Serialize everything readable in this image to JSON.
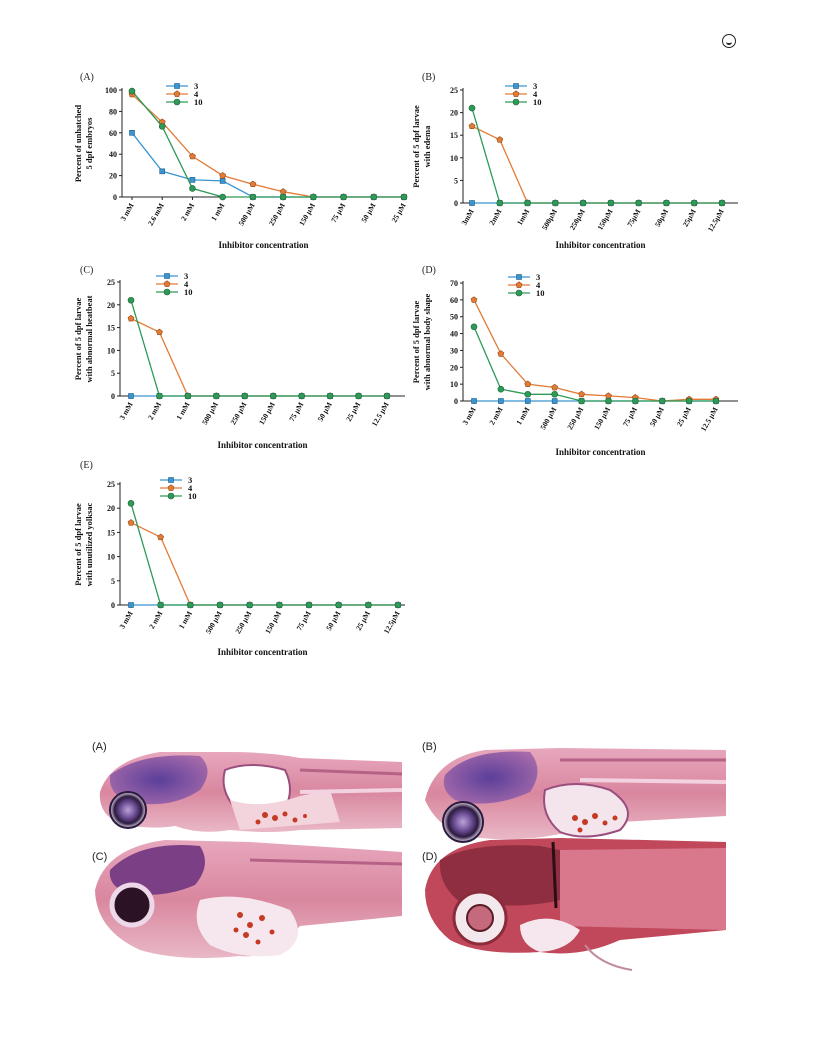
{
  "colors": {
    "series_3": "#3a95d0",
    "series_4": "#e27b36",
    "series_10": "#2e9a57",
    "axis": "#222222"
  },
  "header": {
    "icon": "circle-chevron-icon"
  },
  "chart_data": [
    {
      "panel": "(A)",
      "type": "line",
      "ylabel": [
        "Percent of unhatched",
        "5 dpf  embryos"
      ],
      "xlabel": "Inhibitor concentration",
      "ylim": [
        0,
        100
      ],
      "yticks": [
        0,
        20,
        40,
        60,
        80,
        100
      ],
      "categories": [
        "3 mM",
        "2.6 mM",
        "2 mM",
        "1 mM",
        "500 µM",
        "250 µM",
        "150 µM",
        "75 µM",
        "50 µM",
        "25 µM"
      ],
      "series": [
        {
          "name": "3",
          "values": [
            60,
            24,
            16,
            15,
            0,
            0,
            0,
            0,
            0,
            0
          ]
        },
        {
          "name": "4",
          "values": [
            96,
            70,
            38,
            20,
            12,
            5,
            0,
            0,
            0,
            0
          ]
        },
        {
          "name": "10",
          "values": [
            99,
            66,
            8,
            0,
            0,
            0,
            0,
            0,
            0,
            0
          ]
        }
      ],
      "legend": "top-center"
    },
    {
      "panel": "(B)",
      "type": "line",
      "ylabel": [
        "Percent of 5 dpf larvae",
        "with edema"
      ],
      "xlabel": "Inhibitor concentration",
      "ylim": [
        0,
        25
      ],
      "yticks": [
        0,
        5,
        10,
        15,
        20,
        25
      ],
      "categories": [
        "3mM",
        "2mM",
        "1mM",
        "500µM",
        "250µM",
        "150µM",
        "75µM",
        "50µM",
        "25µM",
        "12.5µM"
      ],
      "series": [
        {
          "name": "3",
          "values": [
            0,
            0,
            0,
            0,
            0,
            0,
            0,
            0,
            0,
            0
          ]
        },
        {
          "name": "4",
          "values": [
            17,
            14,
            0,
            0,
            0,
            0,
            0,
            0,
            0,
            0
          ]
        },
        {
          "name": "10",
          "values": [
            21,
            0,
            0,
            0,
            0,
            0,
            0,
            0,
            0,
            0
          ]
        }
      ],
      "legend": "top-center"
    },
    {
      "panel": "(C)",
      "type": "line",
      "ylabel": [
        "Percent of 5 dpf larvae",
        "with abnormal heatbeat"
      ],
      "xlabel": "Inhibitor concentration",
      "ylim": [
        0,
        25
      ],
      "yticks": [
        0,
        5,
        10,
        15,
        20,
        25
      ],
      "categories": [
        "3 mM",
        "2 mM",
        "1 mM",
        "500 µM",
        "250 µM",
        "150 µM",
        "75 µM",
        "50 µM",
        "25 µM",
        "12.5 µM"
      ],
      "series": [
        {
          "name": "3",
          "values": [
            0,
            0,
            0,
            0,
            0,
            0,
            0,
            0,
            0,
            0
          ]
        },
        {
          "name": "4",
          "values": [
            17,
            14,
            0,
            0,
            0,
            0,
            0,
            0,
            0,
            0
          ]
        },
        {
          "name": "10",
          "values": [
            21,
            0,
            0,
            0,
            0,
            0,
            0,
            0,
            0,
            0
          ]
        }
      ],
      "legend": "top-center"
    },
    {
      "panel": "(D)",
      "type": "line",
      "ylabel": [
        "Percent of 5 dpf larvae",
        "with abnormal body shape"
      ],
      "xlabel": "Inhibitor concentration",
      "ylim": [
        0,
        70
      ],
      "yticks": [
        0,
        10,
        20,
        30,
        40,
        50,
        60,
        70
      ],
      "categories": [
        "3 mM",
        "2 mM",
        "1 mM",
        "500 µM",
        "250 µM",
        "150 µM",
        "75 µM",
        "50 µM",
        "25 µM",
        "12.5 µM"
      ],
      "series": [
        {
          "name": "3",
          "values": [
            0,
            0,
            0,
            0,
            0,
            0,
            0,
            0,
            0,
            0
          ]
        },
        {
          "name": "4",
          "values": [
            60,
            28,
            10,
            8,
            4,
            3,
            2,
            0,
            1,
            1
          ]
        },
        {
          "name": "10",
          "values": [
            44,
            7,
            4,
            4,
            0,
            0,
            0,
            0,
            0,
            0
          ]
        }
      ],
      "legend": "top-center"
    },
    {
      "panel": "(E)",
      "type": "line",
      "ylabel": [
        "Percent of 5 dpf larvae",
        "with unutilized yolksac"
      ],
      "xlabel": "Inhibitor concentration",
      "ylim": [
        0,
        25
      ],
      "yticks": [
        0,
        5,
        10,
        15,
        20,
        25
      ],
      "categories": [
        "3 mM",
        "2 mM",
        "1 mM",
        "500 µM",
        "250 µM",
        "150 µM",
        "75 µM",
        "50 µM",
        "25 µM",
        "12.5µM"
      ],
      "series": [
        {
          "name": "3",
          "values": [
            0,
            0,
            0,
            0,
            0,
            0,
            0,
            0,
            0,
            0
          ]
        },
        {
          "name": "4",
          "values": [
            17,
            14,
            0,
            0,
            0,
            0,
            0,
            0,
            0,
            0
          ]
        },
        {
          "name": "10",
          "values": [
            21,
            0,
            0,
            0,
            0,
            0,
            0,
            0,
            0,
            0
          ]
        }
      ],
      "legend": "top-center"
    }
  ],
  "histology": {
    "labels": [
      "(A)",
      "(B)",
      "(C)",
      "(D)"
    ]
  }
}
